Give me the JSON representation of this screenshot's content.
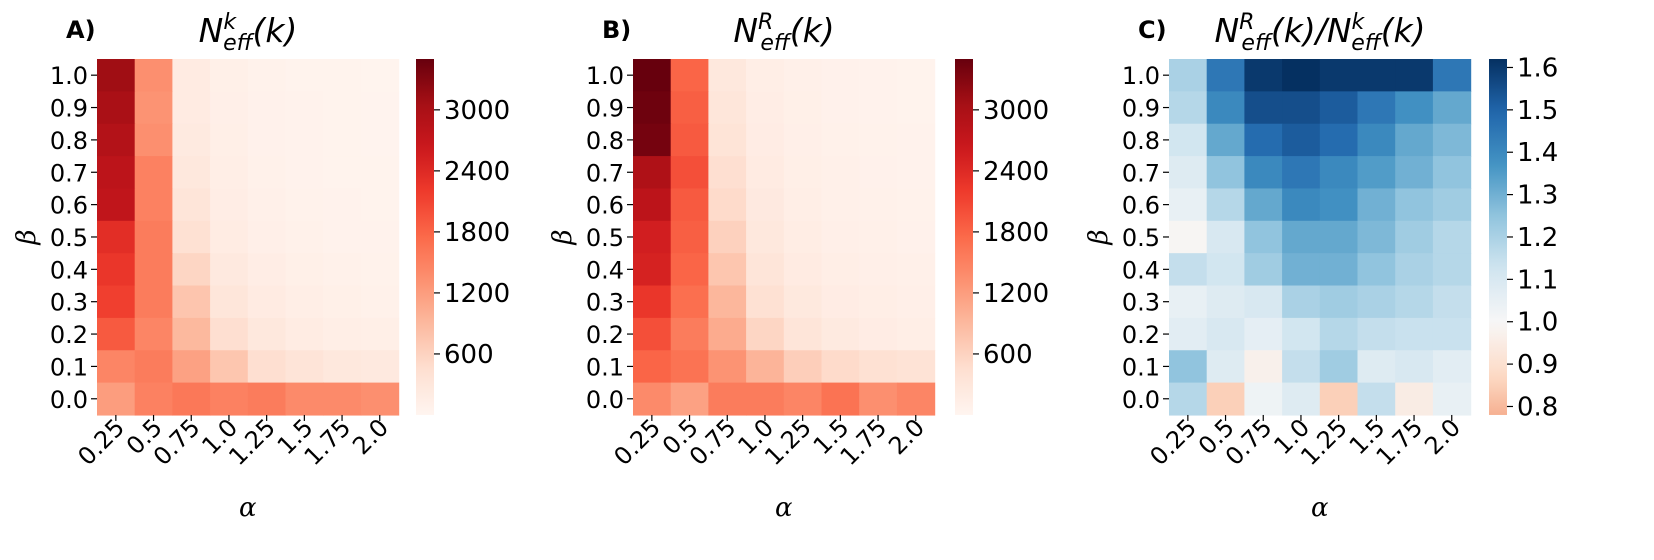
{
  "chart_data": [
    {
      "type": "heatmap",
      "panel": "A)",
      "title": "N_eff^k(k)",
      "title_parts": {
        "base": "N",
        "sub": "eff",
        "sup": "k",
        "arg": "(k)"
      },
      "xlabel": "α",
      "ylabel": "β",
      "x_categories": [
        "0.25",
        "0.5",
        "0.75",
        "1.0",
        "1.25",
        "1.5",
        "1.75",
        "2.0"
      ],
      "y_categories": [
        "1.0",
        "0.9",
        "0.8",
        "0.7",
        "0.6",
        "0.5",
        "0.4",
        "0.3",
        "0.2",
        "0.1",
        "0.0"
      ],
      "colormap": "Reds",
      "colorbar": {
        "min": 0,
        "max": 3500,
        "ticks": [
          600,
          1200,
          1800,
          2400,
          3000
        ],
        "tick_labels": [
          "600",
          "1200",
          "1800",
          "2400",
          "3000"
        ]
      },
      "values": [
        [
          3100,
          1350,
          200,
          110,
          70,
          50,
          40,
          30
        ],
        [
          3000,
          1300,
          210,
          120,
          75,
          55,
          45,
          35
        ],
        [
          2900,
          1350,
          230,
          130,
          80,
          60,
          45,
          35
        ],
        [
          2800,
          1500,
          270,
          140,
          90,
          65,
          50,
          40
        ],
        [
          2750,
          1500,
          330,
          160,
          100,
          70,
          55,
          45
        ],
        [
          2350,
          1550,
          420,
          190,
          120,
          85,
          65,
          55
        ],
        [
          2250,
          1550,
          560,
          250,
          160,
          110,
          90,
          70
        ],
        [
          2150,
          1550,
          760,
          320,
          200,
          140,
          110,
          90
        ],
        [
          1900,
          1450,
          900,
          450,
          270,
          190,
          150,
          130
        ],
        [
          1450,
          1550,
          1150,
          750,
          450,
          350,
          280,
          250
        ],
        [
          1200,
          1500,
          1600,
          1500,
          1550,
          1400,
          1400,
          1350
        ]
      ]
    },
    {
      "type": "heatmap",
      "panel": "B)",
      "title": "N_eff^R(k)",
      "title_parts": {
        "base": "N",
        "sub": "eff",
        "sup": "R",
        "arg": "(k)"
      },
      "xlabel": "α",
      "ylabel": "β",
      "x_categories": [
        "0.25",
        "0.5",
        "0.75",
        "1.0",
        "1.25",
        "1.5",
        "1.75",
        "2.0"
      ],
      "y_categories": [
        "1.0",
        "0.9",
        "0.8",
        "0.7",
        "0.6",
        "0.5",
        "0.4",
        "0.3",
        "0.2",
        "0.1",
        "0.0"
      ],
      "colormap": "Reds",
      "colorbar": {
        "min": 0,
        "max": 3500,
        "ticks": [
          600,
          1200,
          1800,
          2400,
          3000
        ],
        "tick_labels": [
          "600",
          "1200",
          "1800",
          "2400",
          "3000"
        ]
      },
      "values": [
        [
          3500,
          1800,
          280,
          150,
          100,
          75,
          60,
          45
        ],
        [
          3450,
          1850,
          320,
          160,
          110,
          80,
          65,
          50
        ],
        [
          3400,
          1900,
          360,
          180,
          120,
          85,
          70,
          55
        ],
        [
          2950,
          2000,
          450,
          200,
          130,
          95,
          75,
          60
        ],
        [
          2800,
          1900,
          500,
          240,
          150,
          105,
          85,
          70
        ],
        [
          2550,
          1850,
          620,
          280,
          170,
          120,
          95,
          80
        ],
        [
          2500,
          1800,
          750,
          340,
          210,
          150,
          120,
          100
        ],
        [
          2250,
          1700,
          920,
          420,
          260,
          180,
          140,
          120
        ],
        [
          2000,
          1550,
          1050,
          560,
          340,
          230,
          180,
          150
        ],
        [
          1800,
          1650,
          1300,
          950,
          650,
          500,
          420,
          380
        ],
        [
          1400,
          1150,
          1550,
          1550,
          1450,
          1650,
          1350,
          1450
        ]
      ]
    },
    {
      "type": "heatmap",
      "panel": "C)",
      "title": "N_eff^R(k)/N_eff^k(k)",
      "title_parts": {
        "base": "N",
        "sub": "eff",
        "sup": "R",
        "arg": "(k)/",
        "base2": "N",
        "sub2": "eff",
        "sup2": "k",
        "arg2": "(k)"
      },
      "xlabel": "α",
      "ylabel": "β",
      "x_categories": [
        "0.25",
        "0.5",
        "0.75",
        "1.0",
        "1.25",
        "1.5",
        "1.75",
        "2.0"
      ],
      "y_categories": [
        "1.0",
        "0.9",
        "0.8",
        "0.7",
        "0.6",
        "0.5",
        "0.4",
        "0.3",
        "0.2",
        "0.1",
        "0.0"
      ],
      "colormap": "RdBu",
      "colorbar": {
        "min": 0.78,
        "max": 1.62,
        "center": 1.0,
        "ticks": [
          0.8,
          0.9,
          1.0,
          1.1,
          1.2,
          1.3,
          1.4,
          1.5,
          1.6
        ],
        "tick_labels": [
          "0.8",
          "0.9",
          "1.0",
          "1.1",
          "1.2",
          "1.3",
          "1.4",
          "1.5",
          "1.6"
        ]
      },
      "values": [
        [
          1.2,
          1.45,
          1.6,
          1.62,
          1.6,
          1.6,
          1.6,
          1.45
        ],
        [
          1.18,
          1.4,
          1.55,
          1.55,
          1.52,
          1.45,
          1.38,
          1.32
        ],
        [
          1.12,
          1.32,
          1.48,
          1.52,
          1.48,
          1.4,
          1.32,
          1.28
        ],
        [
          1.08,
          1.25,
          1.4,
          1.45,
          1.4,
          1.35,
          1.3,
          1.25
        ],
        [
          1.05,
          1.18,
          1.32,
          1.4,
          1.38,
          1.3,
          1.25,
          1.22
        ],
        [
          0.99,
          1.1,
          1.25,
          1.32,
          1.32,
          1.28,
          1.22,
          1.18
        ],
        [
          1.15,
          1.12,
          1.22,
          1.3,
          1.3,
          1.25,
          1.2,
          1.18
        ],
        [
          1.05,
          1.08,
          1.1,
          1.2,
          1.22,
          1.2,
          1.18,
          1.15
        ],
        [
          1.07,
          1.1,
          1.06,
          1.12,
          1.18,
          1.15,
          1.14,
          1.14
        ],
        [
          1.25,
          1.08,
          0.97,
          1.15,
          1.22,
          1.08,
          1.1,
          1.07
        ],
        [
          1.18,
          0.85,
          1.03,
          1.08,
          0.85,
          1.15,
          0.95,
          1.05
        ]
      ]
    }
  ]
}
